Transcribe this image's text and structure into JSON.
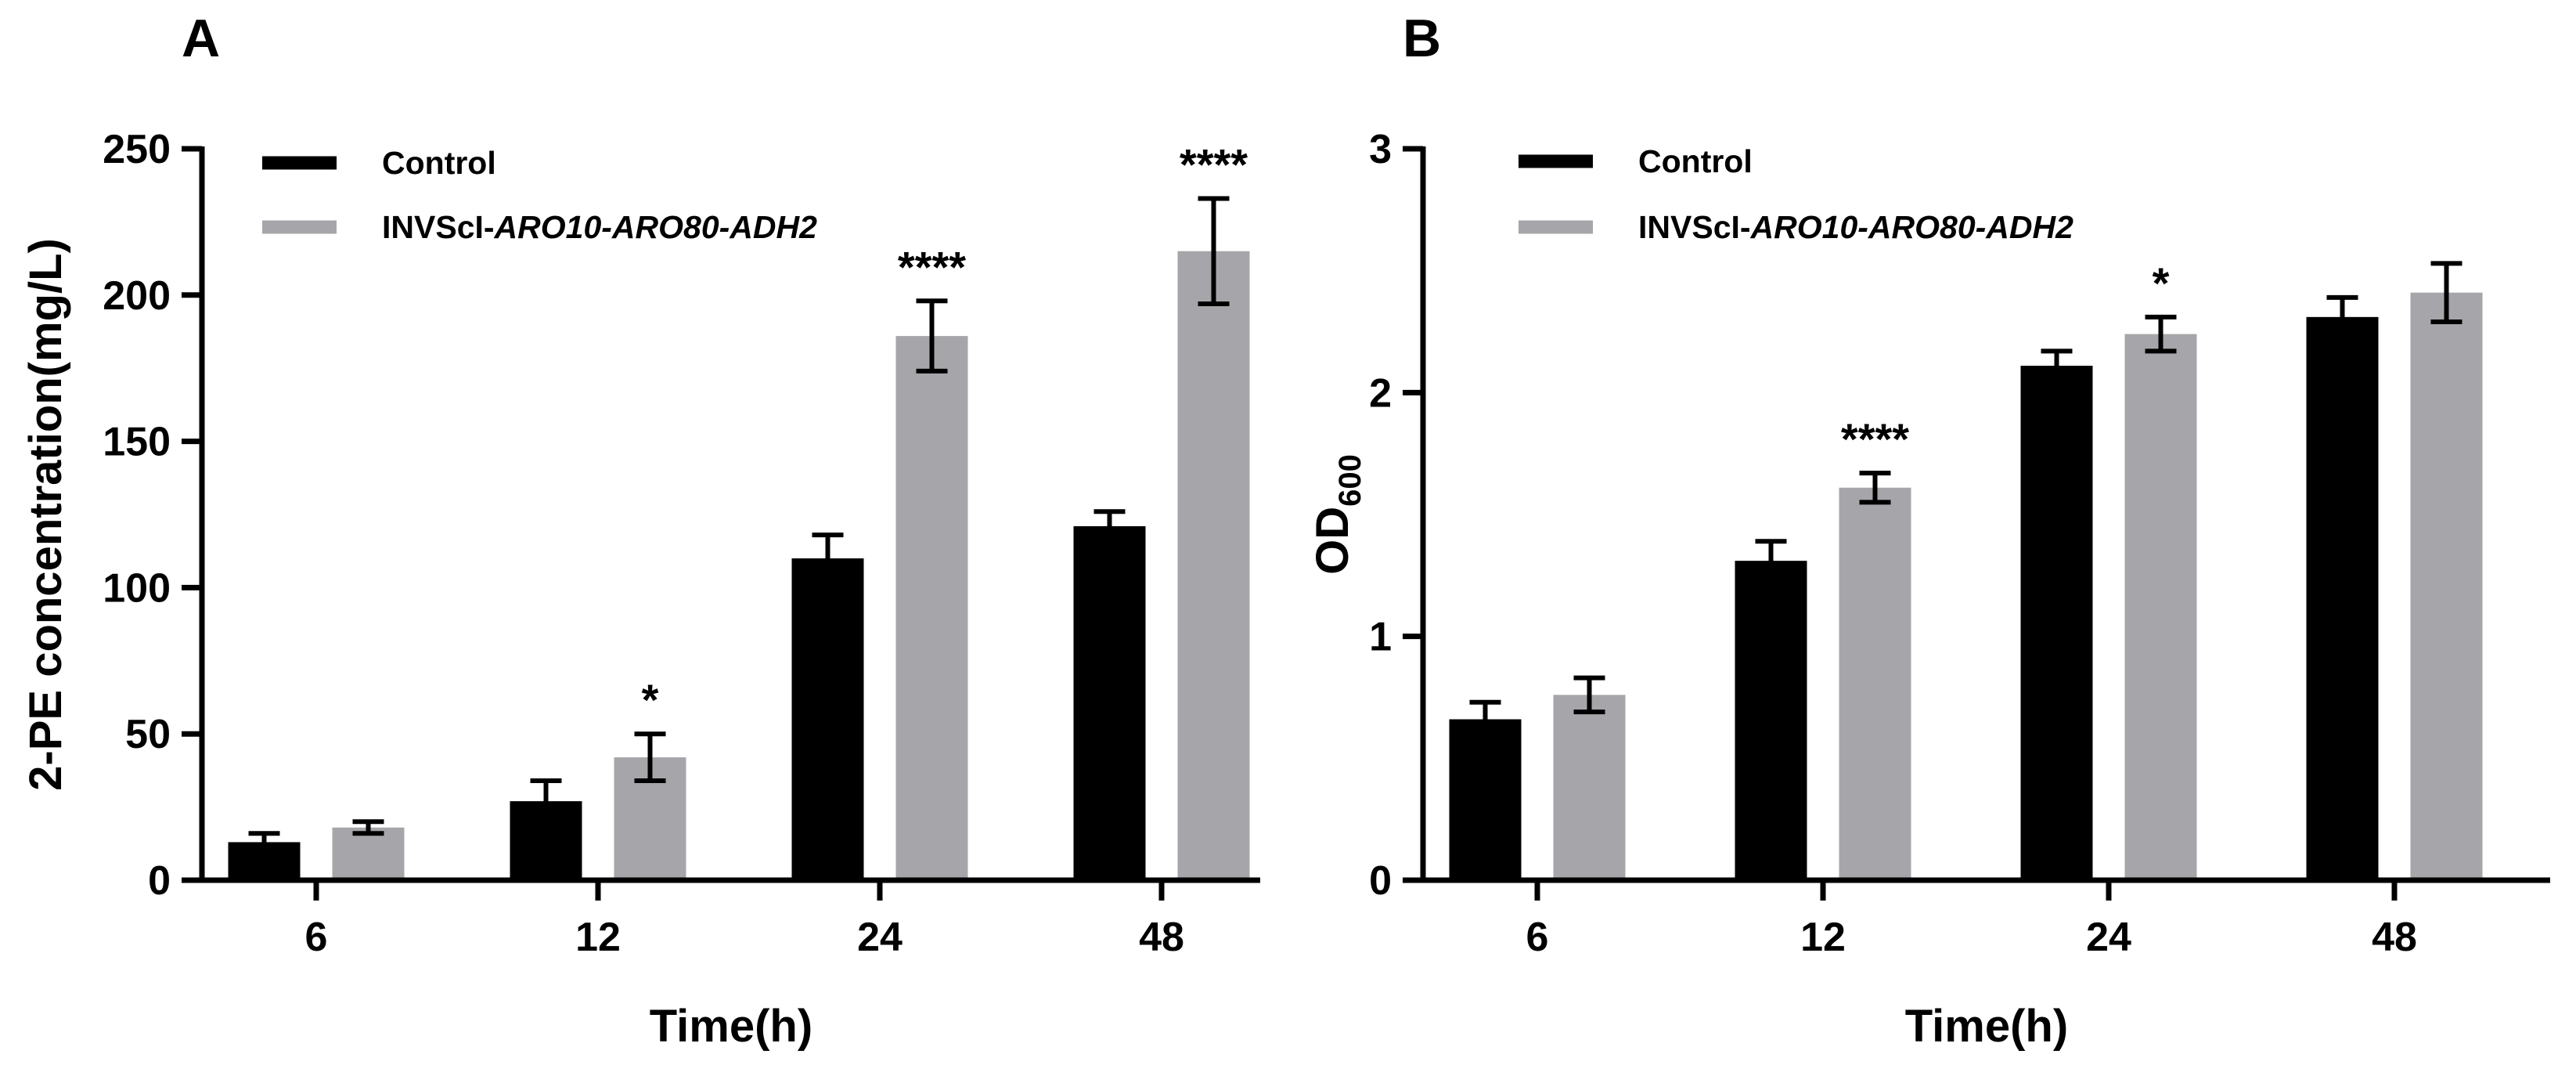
{
  "chart_data": [
    {
      "type": "bar",
      "panel": "A",
      "title": "",
      "xlabel": "Time(h)",
      "ylabel": "2-PE concentration(mg/L)",
      "ylabel_sub": "",
      "ylim": [
        0,
        250
      ],
      "yticks": [
        "0",
        "50",
        "100",
        "150",
        "200",
        "250"
      ],
      "ytick_values": [
        0,
        50,
        100,
        150,
        200,
        250
      ],
      "categories": [
        "6",
        "12",
        "24",
        "48"
      ],
      "legend_position": "top-left",
      "series": [
        {
          "name": "Control",
          "name_plain": "Control",
          "name_italic": "",
          "color": "#000000",
          "values": [
            13,
            27,
            110,
            121
          ],
          "errors": [
            3,
            7,
            8,
            5
          ]
        },
        {
          "name": "INVScI-ARO10-ARO80-ADH2",
          "name_plain": "INVScI-",
          "name_italic": "ARO10-ARO80-ADH2",
          "color": "#a6a6aa",
          "values": [
            18,
            42,
            186,
            215
          ],
          "errors": [
            2,
            8,
            12,
            18
          ]
        }
      ],
      "annotations": [
        "",
        "*",
        "****",
        "****"
      ]
    },
    {
      "type": "bar",
      "panel": "B",
      "title": "",
      "xlabel": "Time(h)",
      "ylabel": "OD",
      "ylabel_sub": "600",
      "ylim": [
        0,
        3
      ],
      "yticks": [
        "0",
        "1",
        "2",
        "3"
      ],
      "ytick_values": [
        0,
        1,
        2,
        3
      ],
      "categories": [
        "6",
        "12",
        "24",
        "48"
      ],
      "legend_position": "top-left",
      "series": [
        {
          "name": "Control",
          "name_plain": "Control",
          "name_italic": "",
          "color": "#000000",
          "values": [
            0.66,
            1.31,
            2.11,
            2.31
          ],
          "errors": [
            0.07,
            0.08,
            0.06,
            0.08
          ]
        },
        {
          "name": "INVScI-ARO10-ARO80-ADH2",
          "name_plain": "INVScI-",
          "name_italic": "ARO10-ARO80-ADH2",
          "color": "#a6a6aa",
          "values": [
            0.76,
            1.61,
            2.24,
            2.41
          ],
          "errors": [
            0.07,
            0.06,
            0.07,
            0.12
          ]
        }
      ],
      "annotations": [
        "",
        "****",
        "*",
        ""
      ]
    }
  ]
}
